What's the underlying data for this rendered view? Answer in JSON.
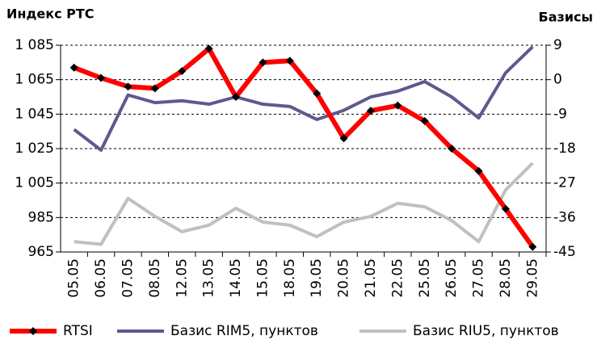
{
  "chart_data": {
    "type": "line",
    "y_label": "Индекс РТС",
    "y2_label": "Базисы",
    "categories": [
      "05.05",
      "06.05",
      "07.05",
      "08.05",
      "12.05",
      "13.05",
      "14.05",
      "15.05",
      "18.05",
      "19.05",
      "20.05",
      "21.05",
      "22.05",
      "25.05",
      "26.05",
      "27.05",
      "28.05",
      "29.05"
    ],
    "series": [
      {
        "name": "RTSI",
        "color": "#ff0000",
        "marker": "diamond",
        "marker_color": "#000000",
        "values": [
          1072,
          1066,
          1061,
          1060,
          1070,
          1083,
          1055,
          1075,
          1076,
          1057,
          1031,
          1047,
          1050,
          1041,
          1025,
          1012,
          990,
          968
        ]
      },
      {
        "name": "Базис RIM5, пунктов",
        "color": "#5b5b8f",
        "axis": "y2",
        "values": [
          -13,
          -18.4,
          -4,
          -6,
          -5.5,
          -6.4,
          -4.5,
          -6.4,
          -7,
          -10.4,
          -8,
          -4.5,
          -3,
          -0.5,
          -4.5,
          -10,
          1.8,
          8.6
        ]
      },
      {
        "name": "Базис RIU5, пунктов",
        "color": "#c0c0c0",
        "axis": "y2",
        "values": [
          -42.3,
          -43,
          -31,
          -35.7,
          -39.7,
          -38,
          -33.6,
          -37.2,
          -38,
          -41,
          -37.2,
          -35.7,
          -32.3,
          -33.2,
          -36.8,
          -42.3,
          -28.8,
          -21.8
        ]
      }
    ],
    "ylim": [
      965,
      1085
    ],
    "yticks": [
      965,
      985,
      {
        "value": 1005,
        "label": "1 005"
      },
      {
        "value": 1025,
        "label": "1 025"
      },
      {
        "value": 1045,
        "label": "1 045"
      },
      {
        "value": 1065,
        "label": "1 065"
      },
      {
        "value": 1085,
        "label": "1 085"
      }
    ],
    "y2lim": [
      -45,
      9
    ],
    "y2ticks": [
      -45,
      -36,
      -27,
      -18,
      -9,
      0,
      9
    ],
    "grid": true,
    "legend": "bottom"
  }
}
